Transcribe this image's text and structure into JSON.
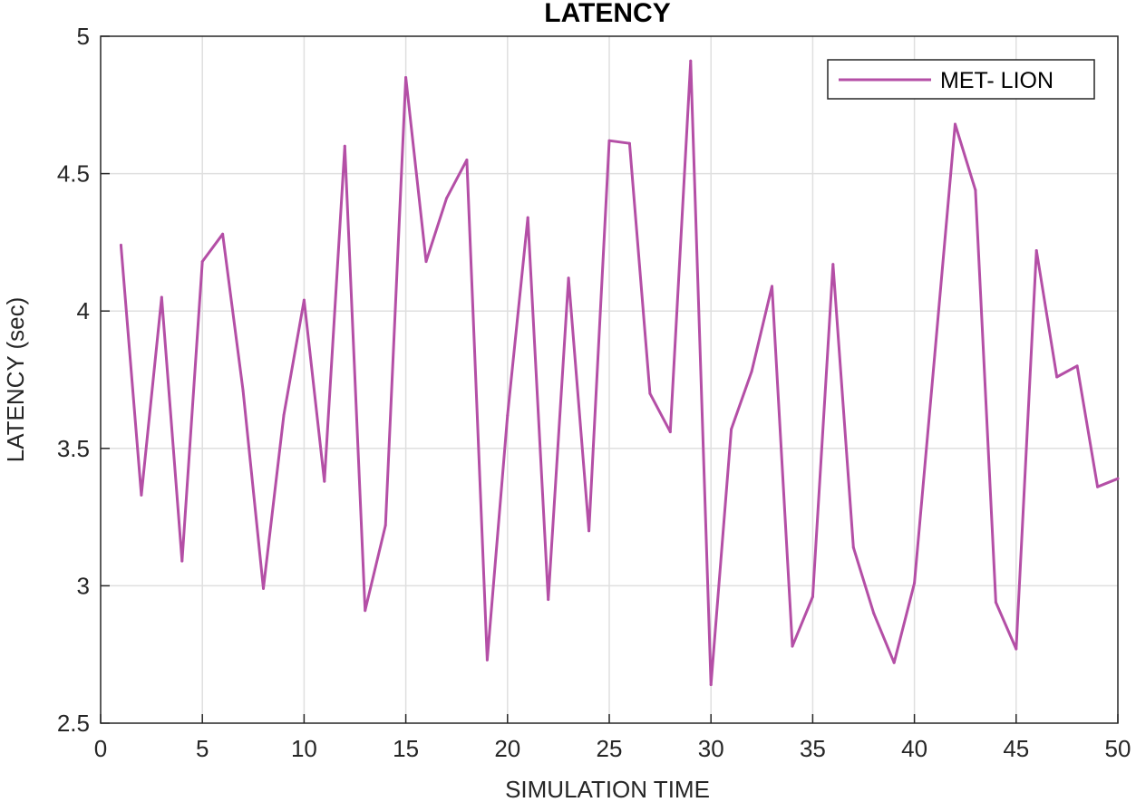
{
  "chart_data": {
    "type": "line",
    "title": "LATENCY",
    "xlabel": "SIMULATION TIME",
    "ylabel": "LATENCY (sec)",
    "xlim": [
      0,
      50
    ],
    "ylim": [
      2.5,
      5
    ],
    "xticks": [
      0,
      5,
      10,
      15,
      20,
      25,
      30,
      35,
      40,
      45,
      50
    ],
    "yticks": [
      2.5,
      3,
      3.5,
      4,
      4.5,
      5
    ],
    "xtick_labels": [
      "0",
      "5",
      "10",
      "15",
      "20",
      "25",
      "30",
      "35",
      "40",
      "45",
      "50"
    ],
    "ytick_labels": [
      "2.5",
      "3",
      "3.5",
      "4",
      "4.5",
      "5"
    ],
    "grid": true,
    "legend_position": "top-right",
    "series": [
      {
        "name": "MET- LION",
        "color": "#b44fa6",
        "x": [
          1,
          2,
          3,
          4,
          5,
          6,
          7,
          8,
          9,
          10,
          11,
          12,
          13,
          14,
          15,
          16,
          17,
          18,
          19,
          20,
          21,
          22,
          23,
          24,
          25,
          26,
          27,
          28,
          29,
          30,
          31,
          32,
          33,
          34,
          35,
          36,
          37,
          38,
          39,
          40,
          41,
          42,
          43,
          44,
          45,
          46,
          47,
          48,
          49,
          50
        ],
        "y": [
          4.24,
          3.33,
          4.05,
          3.09,
          4.18,
          4.28,
          3.71,
          2.99,
          3.62,
          4.04,
          3.38,
          4.6,
          2.91,
          3.22,
          4.85,
          4.18,
          4.41,
          4.55,
          2.73,
          3.62,
          4.34,
          2.95,
          4.12,
          3.2,
          4.62,
          4.61,
          3.7,
          3.56,
          4.91,
          2.64,
          3.57,
          3.78,
          4.09,
          2.78,
          2.96,
          4.17,
          3.14,
          2.9,
          2.72,
          3.01,
          3.84,
          4.68,
          4.44,
          2.94,
          2.77,
          4.22,
          3.76,
          3.8,
          3.36,
          3.39
        ]
      }
    ]
  }
}
